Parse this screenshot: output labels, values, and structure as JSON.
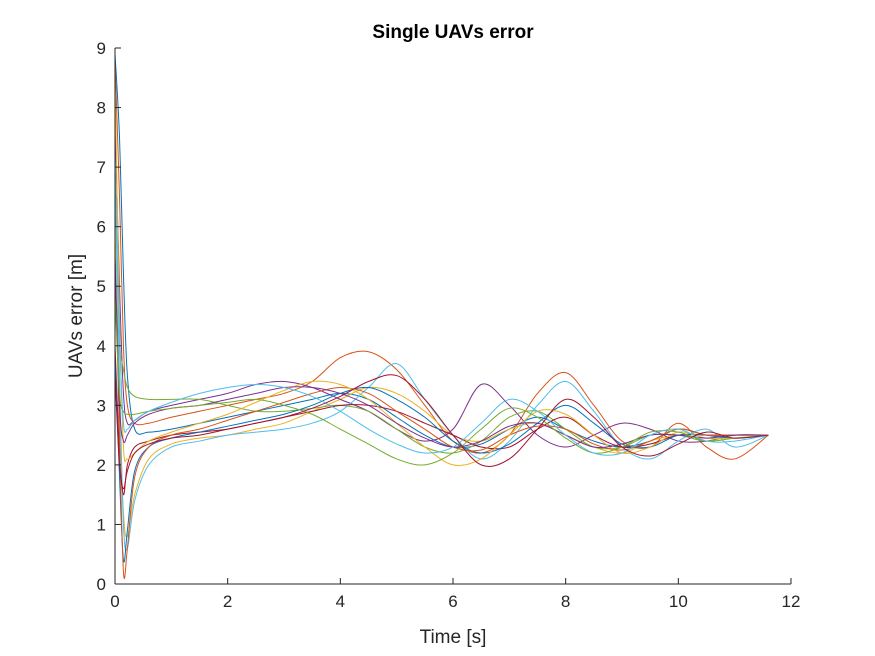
{
  "chart_data": {
    "type": "line",
    "title": "Single UAVs error",
    "xlabel": "Time [s]",
    "ylabel": "UAVs error [m]",
    "xlim": [
      0,
      12
    ],
    "ylim": [
      0,
      9
    ],
    "xticks": [
      0,
      2,
      4,
      6,
      8,
      10,
      12
    ],
    "yticks": [
      0,
      1,
      2,
      3,
      4,
      5,
      6,
      7,
      8,
      9
    ],
    "grid": false,
    "legend": "none",
    "colors": [
      "#0072BD",
      "#D95319",
      "#EDB120",
      "#7E2F8E",
      "#77AC30",
      "#4DBEEE",
      "#A2142F"
    ],
    "series": [
      {
        "x": [
          0,
          0.08,
          0.15,
          0.22,
          0.35,
          0.6,
          1,
          1.5,
          2,
          2.5,
          3,
          3.5,
          4,
          4.5,
          5,
          5.5,
          6,
          6.5,
          7,
          7.5,
          8,
          8.5,
          9,
          9.5,
          10,
          10.5,
          11,
          11.6
        ],
        "y": [
          8.9,
          7.5,
          5.2,
          3.5,
          2.6,
          2.55,
          2.6,
          2.7,
          2.8,
          2.9,
          3.0,
          3.1,
          3.2,
          3.1,
          2.8,
          2.5,
          2.3,
          2.35,
          2.6,
          2.8,
          2.6,
          2.4,
          2.3,
          2.4,
          2.6,
          2.5,
          2.45,
          2.5
        ]
      },
      {
        "x": [
          0,
          0.08,
          0.15,
          0.22,
          0.35,
          0.6,
          1,
          1.5,
          2,
          2.5,
          3,
          3.5,
          4,
          4.5,
          5,
          5.5,
          6,
          6.5,
          7,
          7.5,
          8,
          8.5,
          9,
          9.5,
          10,
          10.5,
          11,
          11.6
        ],
        "y": [
          8.8,
          6.5,
          4.0,
          3.0,
          2.7,
          2.7,
          2.8,
          2.9,
          3.0,
          3.1,
          3.2,
          3.4,
          3.8,
          3.9,
          3.6,
          3.0,
          2.4,
          2.2,
          2.5,
          3.2,
          3.55,
          3.0,
          2.4,
          2.3,
          2.7,
          2.3,
          2.1,
          2.5
        ]
      },
      {
        "x": [
          0,
          0.08,
          0.15,
          0.22,
          0.35,
          0.6,
          1,
          1.5,
          2,
          2.5,
          3,
          3.5,
          4,
          4.5,
          5,
          5.5,
          6,
          6.5,
          7,
          7.5,
          8,
          8.5,
          9,
          9.5,
          10,
          10.5,
          11,
          11.6
        ],
        "y": [
          6.0,
          3.0,
          1.2,
          0.8,
          1.5,
          2.1,
          2.35,
          2.45,
          2.5,
          2.6,
          2.7,
          2.9,
          3.1,
          3.3,
          3.2,
          2.9,
          2.5,
          2.4,
          2.6,
          2.7,
          2.5,
          2.3,
          2.2,
          2.4,
          2.5,
          2.45,
          2.5,
          2.5
        ]
      },
      {
        "x": [
          0,
          0.08,
          0.15,
          0.22,
          0.35,
          0.6,
          1,
          1.5,
          2,
          2.5,
          3,
          3.5,
          4,
          4.5,
          5,
          5.5,
          6,
          6.5,
          7,
          7.5,
          8,
          8.5,
          9,
          9.5,
          10,
          10.5,
          11,
          11.6
        ],
        "y": [
          7.8,
          5.0,
          3.2,
          2.7,
          2.75,
          2.9,
          3.0,
          3.1,
          3.2,
          3.35,
          3.4,
          3.3,
          3.1,
          2.9,
          2.6,
          2.4,
          2.6,
          3.35,
          3.0,
          2.5,
          2.3,
          2.5,
          2.7,
          2.6,
          2.4,
          2.4,
          2.5,
          2.5
        ]
      },
      {
        "x": [
          0,
          0.08,
          0.15,
          0.22,
          0.35,
          0.6,
          1,
          1.5,
          2,
          2.5,
          3,
          3.5,
          4,
          4.5,
          5,
          5.5,
          6,
          6.5,
          7,
          7.5,
          8,
          8.5,
          9,
          9.5,
          10,
          10.5,
          11,
          11.6
        ],
        "y": [
          5.0,
          4.0,
          3.6,
          3.3,
          3.15,
          3.1,
          3.1,
          3.1,
          3.0,
          2.9,
          2.9,
          2.95,
          3.0,
          2.9,
          2.6,
          2.3,
          2.2,
          2.4,
          2.8,
          2.9,
          2.6,
          2.3,
          2.3,
          2.5,
          2.5,
          2.4,
          2.5,
          2.5
        ]
      },
      {
        "x": [
          0,
          0.08,
          0.15,
          0.22,
          0.35,
          0.6,
          1,
          1.5,
          2,
          2.5,
          3,
          3.5,
          4,
          4.5,
          5,
          5.5,
          6,
          6.5,
          7,
          7.5,
          8,
          8.5,
          9,
          9.5,
          10,
          10.5,
          11,
          11.6
        ],
        "y": [
          6.8,
          3.5,
          1.0,
          0.6,
          1.4,
          2.0,
          2.3,
          2.4,
          2.5,
          2.55,
          2.6,
          2.7,
          2.9,
          3.3,
          3.7,
          3.1,
          2.5,
          2.1,
          2.4,
          3.0,
          3.4,
          2.9,
          2.3,
          2.1,
          2.4,
          2.6,
          2.3,
          2.5
        ]
      },
      {
        "x": [
          0,
          0.08,
          0.15,
          0.22,
          0.35,
          0.6,
          1,
          1.5,
          2,
          2.5,
          3,
          3.5,
          4,
          4.5,
          5,
          5.5,
          6,
          6.5,
          7,
          7.5,
          8,
          8.5,
          9,
          9.5,
          10,
          10.5,
          11,
          11.6
        ],
        "y": [
          4.0,
          2.2,
          1.5,
          2.0,
          2.3,
          2.4,
          2.5,
          2.55,
          2.6,
          2.7,
          2.8,
          2.9,
          3.0,
          3.0,
          2.9,
          2.7,
          2.5,
          2.3,
          2.3,
          2.6,
          2.8,
          2.5,
          2.3,
          2.35,
          2.5,
          2.5,
          2.5,
          2.5
        ]
      },
      {
        "x": [
          0,
          0.08,
          0.15,
          0.22,
          0.35,
          0.6,
          1,
          1.5,
          2,
          2.5,
          3,
          3.5,
          4,
          4.5,
          5,
          5.5,
          6,
          6.5,
          7,
          7.5,
          8,
          8.5,
          9,
          9.5,
          10,
          10.5,
          11,
          11.6
        ],
        "y": [
          3.8,
          1.8,
          0.4,
          0.9,
          1.9,
          2.3,
          2.45,
          2.55,
          2.65,
          2.75,
          2.85,
          3.0,
          3.2,
          3.3,
          3.1,
          2.8,
          2.4,
          2.2,
          2.35,
          2.7,
          3.0,
          2.7,
          2.35,
          2.3,
          2.5,
          2.5,
          2.45,
          2.5
        ]
      },
      {
        "x": [
          0,
          0.08,
          0.15,
          0.22,
          0.35,
          0.6,
          1,
          1.5,
          2,
          2.5,
          3,
          3.5,
          4,
          4.5,
          5,
          5.5,
          6,
          6.5,
          7,
          7.5,
          8,
          8.5,
          9,
          9.5,
          10,
          10.5,
          11,
          11.6
        ],
        "y": [
          5.5,
          2.5,
          0.2,
          0.6,
          1.8,
          2.3,
          2.5,
          2.6,
          2.75,
          2.9,
          3.05,
          3.2,
          3.3,
          3.2,
          2.9,
          2.6,
          2.3,
          2.25,
          2.5,
          2.65,
          2.6,
          2.35,
          2.25,
          2.4,
          2.6,
          2.5,
          2.5,
          2.5
        ]
      },
      {
        "x": [
          0,
          0.08,
          0.15,
          0.22,
          0.35,
          0.6,
          1,
          1.5,
          2,
          2.5,
          3,
          3.5,
          4,
          4.5,
          5,
          5.5,
          6,
          6.5,
          7,
          7.5,
          8,
          8.5,
          9,
          9.5,
          10,
          10.5,
          11,
          11.6
        ],
        "y": [
          8.5,
          4.5,
          2.3,
          2.1,
          2.2,
          2.4,
          2.55,
          2.7,
          2.85,
          3.05,
          3.25,
          3.4,
          3.35,
          3.1,
          2.7,
          2.3,
          2.0,
          2.1,
          2.5,
          2.9,
          2.85,
          2.5,
          2.2,
          2.3,
          2.55,
          2.45,
          2.45,
          2.5
        ]
      },
      {
        "x": [
          0,
          0.08,
          0.15,
          0.22,
          0.35,
          0.6,
          1,
          1.5,
          2,
          2.5,
          3,
          3.5,
          4,
          4.5,
          5,
          5.5,
          6,
          6.5,
          7,
          7.5,
          8,
          8.5,
          9,
          9.5,
          10,
          10.5,
          11,
          11.6
        ],
        "y": [
          5.5,
          3.0,
          2.4,
          2.5,
          2.7,
          2.85,
          2.95,
          3.0,
          3.1,
          3.2,
          3.3,
          3.3,
          3.2,
          3.0,
          2.7,
          2.45,
          2.3,
          2.4,
          2.65,
          2.7,
          2.5,
          2.3,
          2.35,
          2.5,
          2.5,
          2.45,
          2.5,
          2.5
        ]
      },
      {
        "x": [
          0,
          0.08,
          0.15,
          0.22,
          0.35,
          0.6,
          1,
          1.5,
          2,
          2.5,
          3,
          3.5,
          4,
          4.5,
          5,
          5.5,
          6,
          6.5,
          7,
          7.5,
          8,
          8.5,
          9,
          9.5,
          10,
          10.5,
          11,
          11.6
        ],
        "y": [
          4.8,
          3.2,
          2.9,
          2.85,
          2.85,
          2.9,
          2.95,
          3.0,
          3.05,
          3.1,
          3.0,
          2.85,
          2.6,
          2.35,
          2.1,
          2.0,
          2.2,
          2.6,
          2.95,
          2.8,
          2.45,
          2.2,
          2.3,
          2.55,
          2.55,
          2.4,
          2.45,
          2.5
        ]
      },
      {
        "x": [
          0,
          0.08,
          0.15,
          0.22,
          0.35,
          0.6,
          1,
          1.5,
          2,
          2.5,
          3,
          3.5,
          4,
          4.5,
          5,
          5.5,
          6,
          6.5,
          7,
          7.5,
          8,
          8.5,
          9,
          9.5,
          10,
          10.5,
          11,
          11.6
        ],
        "y": [
          7.2,
          4.2,
          2.7,
          2.6,
          2.75,
          2.9,
          3.05,
          3.2,
          3.3,
          3.35,
          3.3,
          3.15,
          2.9,
          2.6,
          2.35,
          2.2,
          2.3,
          2.7,
          3.1,
          2.9,
          2.5,
          2.2,
          2.2,
          2.5,
          2.6,
          2.4,
          2.4,
          2.5
        ]
      },
      {
        "x": [
          0,
          0.08,
          0.15,
          0.22,
          0.35,
          0.6,
          1,
          1.5,
          2,
          2.5,
          3,
          3.5,
          4,
          4.5,
          5,
          5.5,
          6,
          6.5,
          7,
          7.5,
          8,
          8.5,
          9,
          9.5,
          10,
          10.5,
          11,
          11.6
        ],
        "y": [
          3.5,
          2.0,
          1.6,
          1.9,
          2.2,
          2.35,
          2.45,
          2.5,
          2.6,
          2.7,
          2.8,
          2.95,
          3.15,
          3.4,
          3.5,
          3.1,
          2.5,
          2.0,
          2.1,
          2.6,
          3.1,
          2.8,
          2.3,
          2.15,
          2.35,
          2.55,
          2.45,
          2.5
        ]
      }
    ]
  }
}
